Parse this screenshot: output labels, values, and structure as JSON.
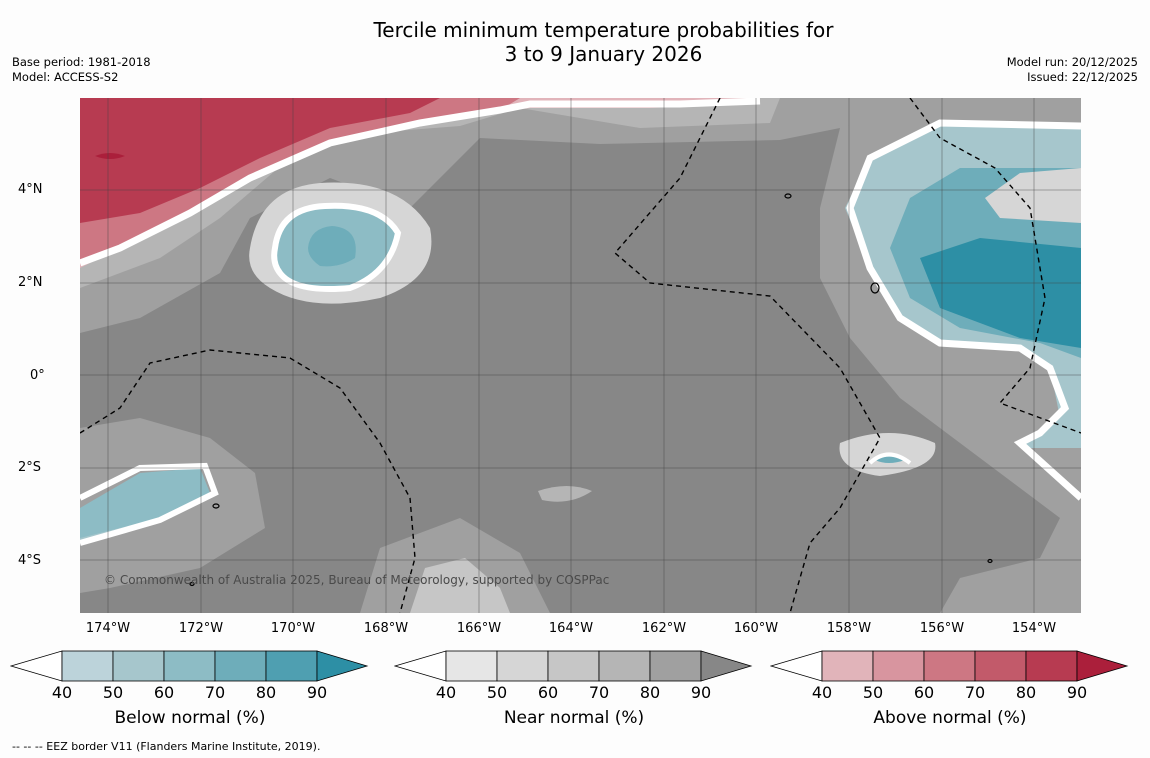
{
  "title": {
    "line1": "Tercile minimum temperature probabilities for",
    "line2": "3 to 9 January 2026"
  },
  "meta_left": {
    "base_period": "Base period: 1981-2018",
    "model": "Model: ACCESS-S2"
  },
  "meta_right": {
    "model_run": "Model run: 20/12/2025",
    "issued": "Issued: 22/12/2025"
  },
  "map": {
    "copyright": "© Commonwealth of Australia 2025, Bureau of Meteorology, supported by COSPPac",
    "lat_ticks": [
      "4°N",
      "2°N",
      "0°",
      "2°S",
      "4°S"
    ],
    "lon_ticks": [
      "174°W",
      "172°W",
      "170°W",
      "168°W",
      "166°W",
      "164°W",
      "162°W",
      "160°W",
      "158°W",
      "156°W",
      "154°W"
    ]
  },
  "colorbars": [
    {
      "label": "Below normal (%)",
      "ticks": [
        "40",
        "50",
        "60",
        "70",
        "80",
        "90"
      ],
      "colors": [
        "#bcd3da",
        "#a6c6cc",
        "#8dbcc5",
        "#6eadba",
        "#4f9fb1",
        "#2d8fa5"
      ]
    },
    {
      "label": "Near normal (%)",
      "ticks": [
        "40",
        "50",
        "60",
        "70",
        "80",
        "90"
      ],
      "colors": [
        "#e6e6e6",
        "#d6d6d6",
        "#c6c6c6",
        "#b5b5b5",
        "#a0a0a0",
        "#878787"
      ]
    },
    {
      "label": "Above normal (%)",
      "ticks": [
        "40",
        "50",
        "60",
        "70",
        "80",
        "90"
      ],
      "colors": [
        "#e1b4ba",
        "#d8959f",
        "#cd7783",
        "#c25a6a",
        "#b73b51",
        "#ab1f3b"
      ]
    }
  ],
  "footnote": "--  --  -- EEZ border V11 (Flanders Marine Institute, 2019)."
}
